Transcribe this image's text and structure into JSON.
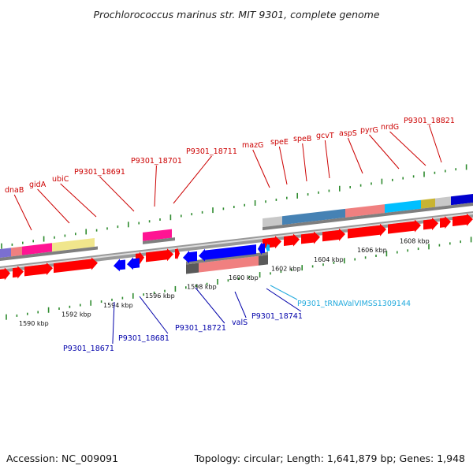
{
  "title": "Prochlorococcus marinus str. MIT 9301, complete genome",
  "accession": "Accession: NC_009091",
  "summary": "Topology: circular; Length: 1,641,879 bp; Genes: 1,948",
  "colors": {
    "backbone": "#8c8c8c",
    "tick": "#2e8b2e",
    "gene_red": "#ff0000",
    "gene_blue": "#0000ff",
    "label_red": "#cc0000",
    "label_blue": "#0000aa",
    "label_trna": "#22aadd"
  },
  "ruler_kbp": [
    {
      "label": "1590 kbp",
      "kb": 1590
    },
    {
      "label": "1592 kbp",
      "kb": 1592
    },
    {
      "label": "1594 kbp",
      "kb": 1594
    },
    {
      "label": "1596 kbp",
      "kb": 1596
    },
    {
      "label": "1598 kbp",
      "kb": 1598
    },
    {
      "label": "1600 kbp",
      "kb": 1600
    },
    {
      "label": "1602 kbp",
      "kb": 1602
    },
    {
      "label": "1604 kbp",
      "kb": 1604
    },
    {
      "label": "1606 kbp",
      "kb": 1606
    },
    {
      "label": "1608 kbp",
      "kb": 1608
    }
  ],
  "forward_genes": [
    {
      "name": "dnaB",
      "color": "#cc0000"
    },
    {
      "name": "gidA",
      "color": "#cc0000"
    },
    {
      "name": "ubiC",
      "color": "#cc0000"
    },
    {
      "name": "P9301_18691",
      "color": "#cc0000"
    },
    {
      "name": "P9301_18701",
      "color": "#cc0000"
    },
    {
      "name": "P9301_18711",
      "color": "#cc0000"
    },
    {
      "name": "mazG",
      "color": "#cc0000"
    },
    {
      "name": "speE",
      "color": "#cc0000"
    },
    {
      "name": "speB",
      "color": "#cc0000"
    },
    {
      "name": "gcvT",
      "color": "#cc0000"
    },
    {
      "name": "aspS",
      "color": "#cc0000"
    },
    {
      "name": "pyrG",
      "color": "#cc0000"
    },
    {
      "name": "nrdG",
      "color": "#cc0000"
    },
    {
      "name": "P9301_18821",
      "color": "#cc0000"
    }
  ],
  "reverse_genes": [
    {
      "name": "P9301_18671",
      "color": "#0000aa"
    },
    {
      "name": "P9301_18681",
      "color": "#0000aa"
    },
    {
      "name": "P9301_18721",
      "color": "#0000aa"
    },
    {
      "name": "valS",
      "color": "#0000aa"
    },
    {
      "name": "P9301_18741",
      "color": "#0000aa"
    },
    {
      "name": "P9301_tRNAValVIMSS1309144",
      "color": "#22aadd"
    }
  ]
}
